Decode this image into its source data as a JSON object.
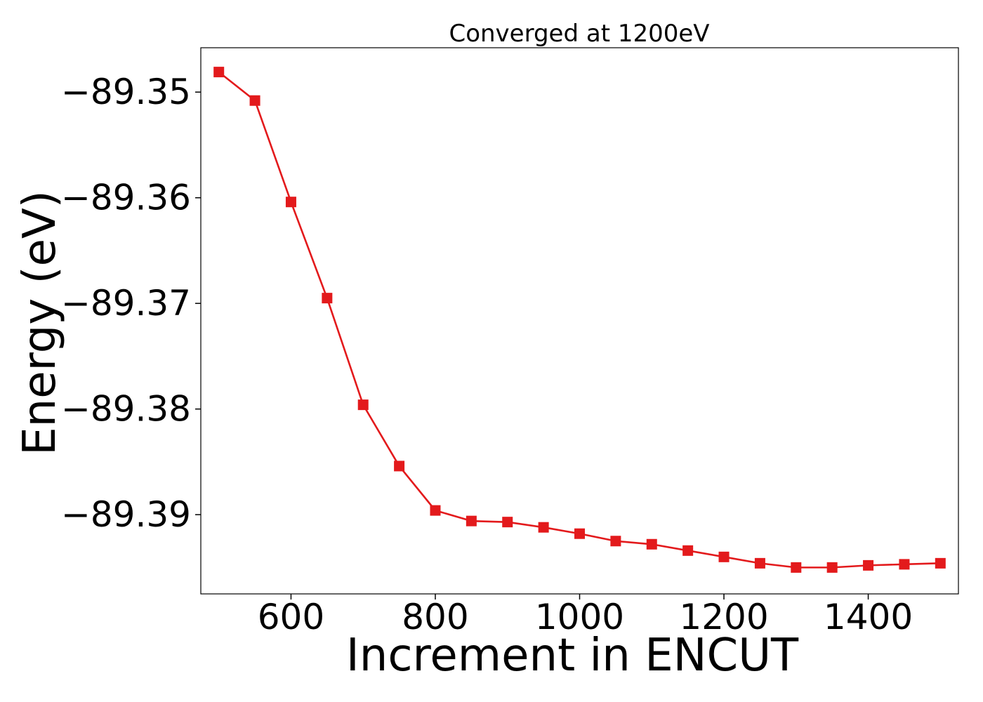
{
  "chart_data": {
    "type": "line",
    "title": "Converged at 1200eV",
    "xlabel": "Increment in ENCUT",
    "ylabel": "Energy (eV)",
    "xlim": [
      475,
      1525
    ],
    "ylim": [
      -89.3975,
      -89.3458
    ],
    "xticks": [
      600,
      800,
      1000,
      1200,
      1400
    ],
    "xtick_labels": [
      "600",
      "800",
      "1000",
      "1200",
      "1400"
    ],
    "yticks": [
      -89.35,
      -89.36,
      -89.37,
      -89.38,
      -89.39
    ],
    "ytick_labels": [
      "−89.35",
      "−89.36",
      "−89.37",
      "−89.38",
      "−89.39"
    ],
    "grid": false,
    "series": [
      {
        "color": "#e31a1c",
        "marker": "square",
        "x": [
          500,
          550,
          600,
          650,
          700,
          750,
          800,
          850,
          900,
          950,
          1000,
          1050,
          1100,
          1150,
          1200,
          1250,
          1300,
          1350,
          1400,
          1450,
          1500
        ],
        "y": [
          -89.3481,
          -89.3508,
          -89.3604,
          -89.3695,
          -89.3796,
          -89.3854,
          -89.3896,
          -89.3906,
          -89.3907,
          -89.3912,
          -89.3918,
          -89.3925,
          -89.3928,
          -89.3934,
          -89.394,
          -89.3946,
          -89.395,
          -89.395,
          -89.3948,
          -89.3947,
          -89.3946
        ]
      }
    ]
  }
}
